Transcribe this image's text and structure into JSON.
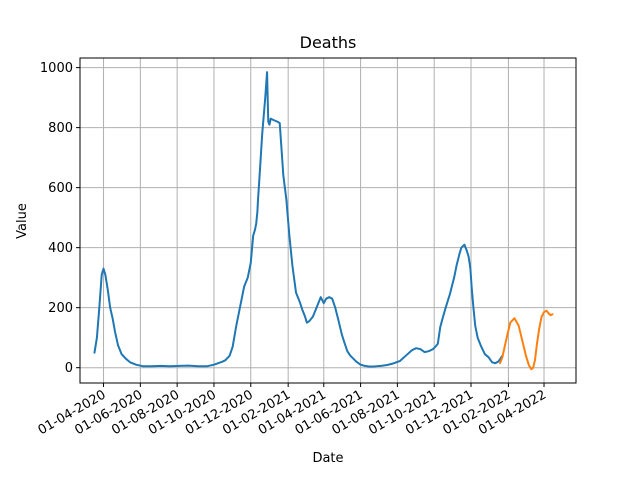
{
  "chart_data": {
    "type": "line",
    "title": "Deaths",
    "xlabel": "Date",
    "ylabel": "Value",
    "grid": true,
    "xlim": [
      "2020-02-22",
      "2022-05-24"
    ],
    "ylim": [
      -51,
      1032
    ],
    "x_ticks": [
      "2020-04-01",
      "2020-06-01",
      "2020-08-01",
      "2020-10-01",
      "2020-12-01",
      "2021-02-01",
      "2021-04-01",
      "2021-06-01",
      "2021-08-01",
      "2021-10-01",
      "2021-12-01",
      "2022-02-01",
      "2022-04-01"
    ],
    "x_tick_labels": [
      "01-04-2020",
      "01-06-2020",
      "01-08-2020",
      "01-10-2020",
      "01-12-2020",
      "01-02-2021",
      "01-04-2021",
      "01-06-2021",
      "01-08-2021",
      "01-10-2021",
      "01-12-2021",
      "01-02-2022",
      "01-04-2022"
    ],
    "y_ticks": [
      0,
      200,
      400,
      600,
      800,
      1000
    ],
    "y_tick_labels": [
      "0",
      "200",
      "400",
      "600",
      "800",
      "1000"
    ],
    "series": [
      {
        "color": "#1f77b4",
        "x": [
          "2020-03-17",
          "2020-03-21",
          "2020-03-25",
          "2020-03-29",
          "2020-04-01",
          "2020-04-04",
          "2020-04-08",
          "2020-04-12",
          "2020-04-16",
          "2020-04-20",
          "2020-04-25",
          "2020-05-01",
          "2020-05-08",
          "2020-05-15",
          "2020-05-25",
          "2020-06-05",
          "2020-06-20",
          "2020-07-05",
          "2020-07-20",
          "2020-08-05",
          "2020-08-20",
          "2020-09-05",
          "2020-09-20",
          "2020-10-01",
          "2020-10-08",
          "2020-10-15",
          "2020-10-20",
          "2020-10-27",
          "2020-11-01",
          "2020-11-07",
          "2020-11-14",
          "2020-11-20",
          "2020-11-26",
          "2020-12-01",
          "2020-12-05",
          "2020-12-08",
          "2020-12-10",
          "2020-12-12",
          "2020-12-13",
          "2020-12-15",
          "2020-12-20",
          "2020-12-25",
          "2020-12-28",
          "2020-12-30",
          "2021-01-01",
          "2021-01-03",
          "2021-01-08",
          "2021-01-14",
          "2021-01-18",
          "2021-01-24",
          "2021-01-29",
          "2021-02-03",
          "2021-02-08",
          "2021-02-14",
          "2021-02-20",
          "2021-02-25",
          "2021-03-01",
          "2021-03-04",
          "2021-03-08",
          "2021-03-14",
          "2021-03-20",
          "2021-03-24",
          "2021-03-27",
          "2021-04-01",
          "2021-04-05",
          "2021-04-10",
          "2021-04-15",
          "2021-04-20",
          "2021-04-25",
          "2021-05-01",
          "2021-05-05",
          "2021-05-10",
          "2021-05-15",
          "2021-05-20",
          "2021-05-25",
          "2021-06-01",
          "2021-06-08",
          "2021-06-15",
          "2021-06-22",
          "2021-06-28",
          "2021-07-05",
          "2021-07-15",
          "2021-07-25",
          "2021-08-05",
          "2021-08-15",
          "2021-08-25",
          "2021-09-01",
          "2021-09-08",
          "2021-09-15",
          "2021-09-22",
          "2021-09-29",
          "2021-10-03",
          "2021-10-07",
          "2021-10-11",
          "2021-10-15",
          "2021-10-20",
          "2021-10-27",
          "2021-11-03",
          "2021-11-07",
          "2021-11-12",
          "2021-11-15",
          "2021-11-20",
          "2021-11-24",
          "2021-11-27",
          "2021-11-30",
          "2021-12-02",
          "2021-12-05",
          "2021-12-08",
          "2021-12-12",
          "2021-12-18",
          "2021-12-24",
          "2021-12-30",
          "2022-01-05",
          "2022-01-10",
          "2022-01-15",
          "2022-01-18",
          "2022-01-22"
        ],
        "y": [
          50,
          100,
          200,
          310,
          330,
          310,
          260,
          200,
          165,
          120,
          75,
          45,
          30,
          18,
          10,
          5,
          5,
          6,
          5,
          6,
          7,
          5,
          5,
          10,
          15,
          20,
          25,
          40,
          70,
          140,
          210,
          270,
          300,
          350,
          440,
          460,
          480,
          520,
          560,
          620,
          780,
          900,
          985,
          820,
          810,
          830,
          825,
          820,
          815,
          640,
          560,
          440,
          340,
          250,
          220,
          190,
          170,
          150,
          155,
          170,
          200,
          220,
          235,
          215,
          230,
          235,
          230,
          200,
          160,
          110,
          85,
          55,
          40,
          30,
          20,
          10,
          6,
          4,
          4,
          5,
          6,
          9,
          14,
          22,
          40,
          58,
          65,
          62,
          52,
          55,
          62,
          70,
          80,
          135,
          165,
          200,
          245,
          300,
          340,
          380,
          400,
          410,
          390,
          370,
          330,
          270,
          200,
          140,
          100,
          70,
          45,
          35,
          18,
          15,
          20,
          28,
          40
        ]
      },
      {
        "color": "#ff7f0e",
        "x": [
          "2022-01-18",
          "2022-01-22",
          "2022-01-28",
          "2022-02-04",
          "2022-02-11",
          "2022-02-18",
          "2022-02-24",
          "2022-03-02",
          "2022-03-07",
          "2022-03-11",
          "2022-03-14",
          "2022-03-17",
          "2022-03-20",
          "2022-03-24",
          "2022-03-28",
          "2022-04-01",
          "2022-04-05",
          "2022-04-09",
          "2022-04-12",
          "2022-04-15"
        ],
        "y": [
          15,
          35,
          90,
          150,
          165,
          140,
          90,
          40,
          8,
          -5,
          0,
          25,
          75,
          130,
          170,
          185,
          190,
          180,
          175,
          178
        ]
      }
    ]
  }
}
